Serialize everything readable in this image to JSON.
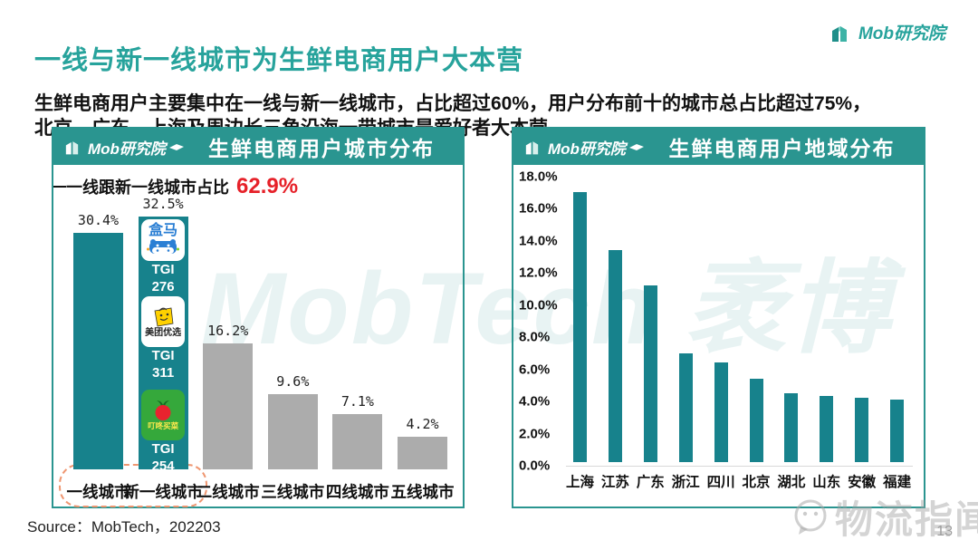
{
  "page": {
    "title": "一线与新一线城市为生鲜电商用户大本营",
    "subtitle_line1": "生鲜电商用户主要集中在一线与新一线城市，占比超过60%，用户分布前十的城市总占比超过75%，",
    "subtitle_line2": "北京、广东、上海及周边长三角沿海一带城市是爱好者大本营",
    "brand": "Mob研究院",
    "source": "Source：MobTech，202203",
    "page_number": "13",
    "center_watermark": "MobTech 袤博",
    "corner_watermark": "物流指闻"
  },
  "colors": {
    "title_teal": "#27a39c",
    "header_teal": "#2a9590",
    "bar_teal": "#17828c",
    "bar_gray": "#acacac",
    "accent_red": "#e62129",
    "dashed_highlight": "#ef9670"
  },
  "chart_data": [
    {
      "id": "city-distribution",
      "type": "bar",
      "title": "生鲜电商用户城市分布",
      "categories": [
        "一线城市",
        "新一线城市",
        "二线城市",
        "三线城市",
        "四线城市",
        "五线城市"
      ],
      "values": [
        30.4,
        32.5,
        16.2,
        9.6,
        7.1,
        4.2
      ],
      "value_labels": [
        "30.4%",
        "32.5%",
        "16.2%",
        "9.6%",
        "7.1%",
        "4.2%"
      ],
      "bar_colors": [
        "#17828c",
        "#17828c",
        "#acacac",
        "#acacac",
        "#acacac",
        "#acacac"
      ],
      "ylim": [
        0,
        35
      ],
      "grid": false,
      "legend": "none",
      "annotation_text": "一线跟新一线城市占比",
      "annotation_value": "62.9%",
      "highlighted_categories": [
        "一线城市",
        "新一线城市"
      ],
      "apps_in_category": "新一线城市",
      "apps": [
        {
          "name": "盒马",
          "tgi_line1": "TGI",
          "tgi_line2": "276"
        },
        {
          "name": "美团优选",
          "tgi_line1": "TGI",
          "tgi_line2": "311"
        },
        {
          "name": "叮咚买菜",
          "tgi_line1": "TGI",
          "tgi_line2": "254"
        }
      ]
    },
    {
      "id": "region-distribution",
      "type": "bar",
      "title": "生鲜电商用户地域分布",
      "categories": [
        "上海",
        "江苏",
        "广东",
        "浙江",
        "四川",
        "北京",
        "湖北",
        "山东",
        "安徽",
        "福建"
      ],
      "values": [
        16.8,
        13.2,
        11.0,
        6.8,
        6.2,
        5.2,
        4.3,
        4.1,
        4.0,
        3.9
      ],
      "ylim": [
        0,
        18
      ],
      "yticks": [
        "18.0%",
        "16.0%",
        "14.0%",
        "12.0%",
        "10.0%",
        "8.0%",
        "6.0%",
        "4.0%",
        "2.0%",
        "0.0%"
      ],
      "grid": false,
      "legend": "none",
      "bar_color": "#17828c"
    }
  ]
}
